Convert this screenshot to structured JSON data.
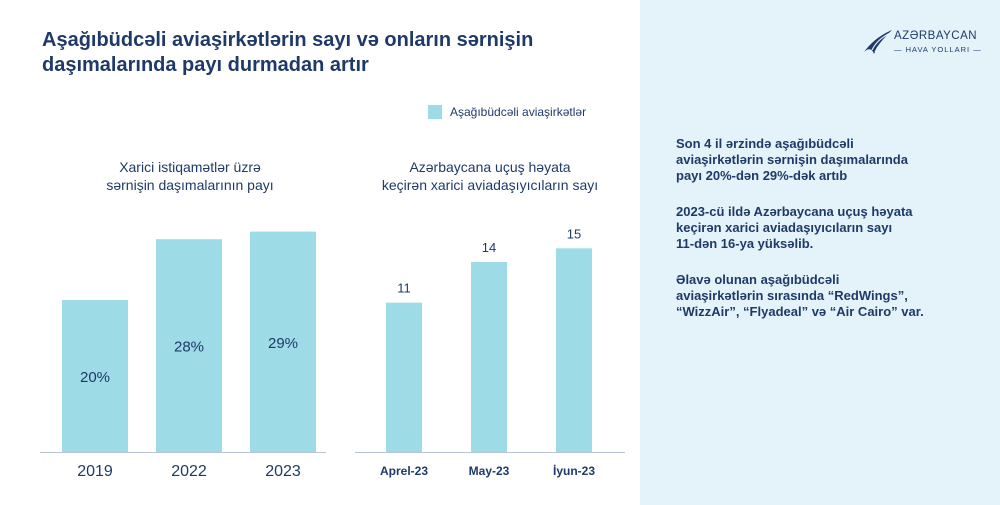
{
  "title": {
    "line1": "Aşağıbüdcəli aviaşirkətlərin sayı və onların sərnişin",
    "line2": "daşımalarında payı durmadan artır"
  },
  "legend": {
    "label": "Aşağıbüdcəli aviaşirkətlər",
    "color": "#9ddbe6"
  },
  "logo": {
    "line1": "AZƏRBAYCAN",
    "line2": "— HAVA YOLLARI —"
  },
  "notes": [
    {
      "lines": [
        "Son 4 il ərzində aşağıbüdcəli",
        "aviaşirkətlərin  sərnişin daşımalarında",
        "payı 20%-dən 29%-dək artıb"
      ]
    },
    {
      "lines": [
        "2023-cü ildə Azərbaycana uçuş həyata",
        "keçirən xarici aviadaşıyıcıların sayı",
        "11-dən 16-ya yüksəlib."
      ]
    },
    {
      "lines": [
        "Əlavə olunan aşağıbüdcəli",
        "aviaşirkətlərin sırasında “RedWings”,",
        "“WizzAir”, “Flyadeal” və “Air Cairo” var."
      ]
    }
  ],
  "colors": {
    "bar": "#9ddbe6",
    "text": "#1f3a68",
    "panel": "#e3f3f9"
  },
  "chart_data": [
    {
      "type": "bar",
      "title_lines": [
        "Xarici istiqamətlər üzrə",
        "sərnişin daşımalarının payı"
      ],
      "categories": [
        "2019",
        "2022",
        "2023"
      ],
      "values": [
        20,
        28,
        29
      ],
      "value_labels": [
        "20%",
        "28%",
        "29%"
      ],
      "label_position": "inside",
      "ylim": [
        0,
        35
      ]
    },
    {
      "type": "bar",
      "title_lines": [
        "Azərbaycana uçuş həyata",
        "keçirən xarici aviadaşıyıcıların sayı"
      ],
      "categories": [
        "Aprel-23",
        "May-23",
        "İyun-23"
      ],
      "values": [
        11,
        14,
        15
      ],
      "value_labels": [
        "11",
        "14",
        "15"
      ],
      "label_position": "above",
      "ylim": [
        0,
        16.5
      ]
    }
  ]
}
